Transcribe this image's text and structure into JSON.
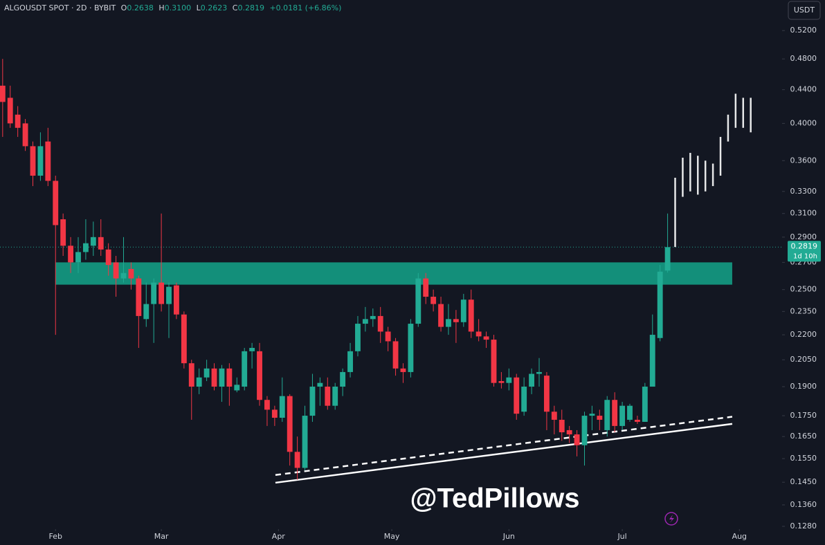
{
  "chart_data": {
    "type": "candlestick",
    "header": {
      "symbol": "ALGOUSDT SPOT · 2D · BYBIT",
      "o_key": "O",
      "o": "0.2638",
      "h_key": "H",
      "h": "0.3100",
      "l_key": "L",
      "l": "0.2623",
      "c_key": "C",
      "c": "0.2819",
      "change": "+0.0181 (+6.86%)"
    },
    "currency": "USDT",
    "watermark": "@TedPillows",
    "log_scale": true,
    "grid": false,
    "up_color": "#22ab94",
    "down_color": "#f23645",
    "x": [
      17,
      19,
      21,
      23,
      25,
      27,
      29,
      31,
      33,
      35,
      37,
      39,
      41,
      43,
      45,
      47,
      49,
      51,
      53,
      55,
      57,
      59,
      61,
      63,
      65,
      67,
      69,
      71,
      73,
      75,
      77,
      79,
      81,
      83,
      85,
      87,
      89,
      91,
      93,
      95,
      97,
      99,
      101,
      103,
      105,
      107,
      109,
      111,
      113,
      115,
      117,
      119,
      121,
      123,
      125,
      127,
      129,
      131,
      133,
      135,
      137,
      139,
      141,
      143,
      145,
      147,
      149,
      151,
      153,
      155,
      157,
      159,
      161,
      163,
      165,
      167,
      169,
      171,
      173,
      175,
      177,
      179,
      181,
      183,
      185,
      187,
      189,
      191,
      193
    ],
    "open": [
      0.445,
      0.43,
      0.41,
      0.4,
      0.375,
      0.345,
      0.38,
      0.34,
      0.305,
      0.283,
      0.27,
      0.278,
      0.283,
      0.29,
      0.28,
      0.27,
      0.258,
      0.265,
      0.258,
      0.23,
      0.24,
      0.255,
      0.24,
      0.253,
      0.233,
      0.203,
      0.19,
      0.195,
      0.2,
      0.19,
      0.2,
      0.188,
      0.19,
      0.21,
      0.21,
      0.183,
      0.178,
      0.174,
      0.185,
      0.158,
      0.151,
      0.175,
      0.19,
      0.19,
      0.18,
      0.19,
      0.198,
      0.21,
      0.227,
      0.23,
      0.232,
      0.222,
      0.216,
      0.2,
      0.198,
      0.227,
      0.258,
      0.245,
      0.24,
      0.225,
      0.23,
      0.228,
      0.243,
      0.222,
      0.219,
      0.217,
      0.193,
      0.192,
      0.195,
      0.177,
      0.19,
      0.197,
      0.196,
      0.177,
      0.173,
      0.168,
      0.166,
      0.161,
      0.175,
      0.175,
      0.168,
      0.183,
      0.17,
      0.173,
      0.173,
      0.172,
      0.19,
      0.218,
      0.2638
    ],
    "high": [
      0.48,
      0.445,
      0.42,
      0.405,
      0.38,
      0.39,
      0.395,
      0.345,
      0.31,
      0.29,
      0.29,
      0.305,
      0.303,
      0.305,
      0.285,
      0.275,
      0.29,
      0.27,
      0.26,
      0.255,
      0.258,
      0.31,
      0.255,
      0.255,
      0.235,
      0.205,
      0.2,
      0.205,
      0.203,
      0.202,
      0.203,
      0.195,
      0.212,
      0.215,
      0.215,
      0.185,
      0.18,
      0.195,
      0.186,
      0.165,
      0.18,
      0.197,
      0.195,
      0.195,
      0.192,
      0.2,
      0.215,
      0.232,
      0.238,
      0.237,
      0.238,
      0.225,
      0.218,
      0.203,
      0.23,
      0.262,
      0.262,
      0.25,
      0.245,
      0.24,
      0.236,
      0.247,
      0.25,
      0.23,
      0.222,
      0.22,
      0.198,
      0.2,
      0.197,
      0.195,
      0.2,
      0.206,
      0.198,
      0.18,
      0.178,
      0.17,
      0.168,
      0.177,
      0.18,
      0.178,
      0.185,
      0.187,
      0.182,
      0.181,
      0.175,
      0.192,
      0.233,
      0.268,
      0.31
    ],
    "low": [
      0.385,
      0.395,
      0.385,
      0.37,
      0.335,
      0.34,
      0.335,
      0.22,
      0.275,
      0.262,
      0.262,
      0.272,
      0.275,
      0.275,
      0.26,
      0.245,
      0.255,
      0.25,
      0.212,
      0.225,
      0.215,
      0.235,
      0.218,
      0.23,
      0.2,
      0.173,
      0.186,
      0.193,
      0.188,
      0.182,
      0.18,
      0.187,
      0.188,
      0.2,
      0.18,
      0.17,
      0.17,
      0.172,
      0.152,
      0.146,
      0.15,
      0.172,
      0.18,
      0.178,
      0.178,
      0.185,
      0.195,
      0.207,
      0.222,
      0.225,
      0.215,
      0.21,
      0.196,
      0.192,
      0.195,
      0.225,
      0.24,
      0.235,
      0.222,
      0.22,
      0.215,
      0.225,
      0.218,
      0.216,
      0.212,
      0.19,
      0.189,
      0.188,
      0.173,
      0.175,
      0.186,
      0.19,
      0.168,
      0.166,
      0.163,
      0.162,
      0.156,
      0.152,
      0.168,
      0.168,
      0.165,
      0.167,
      0.168,
      0.172,
      0.171,
      0.172,
      0.19,
      0.216,
      0.2623
    ],
    "close": [
      0.425,
      0.4,
      0.395,
      0.375,
      0.345,
      0.375,
      0.34,
      0.3,
      0.283,
      0.27,
      0.278,
      0.285,
      0.29,
      0.28,
      0.268,
      0.258,
      0.262,
      0.258,
      0.232,
      0.24,
      0.255,
      0.24,
      0.252,
      0.233,
      0.203,
      0.19,
      0.195,
      0.2,
      0.19,
      0.2,
      0.19,
      0.191,
      0.21,
      0.212,
      0.183,
      0.178,
      0.174,
      0.185,
      0.158,
      0.151,
      0.175,
      0.19,
      0.192,
      0.18,
      0.19,
      0.198,
      0.21,
      0.227,
      0.23,
      0.232,
      0.222,
      0.216,
      0.2,
      0.198,
      0.227,
      0.258,
      0.245,
      0.24,
      0.225,
      0.23,
      0.228,
      0.243,
      0.222,
      0.219,
      0.217,
      0.192,
      0.192,
      0.195,
      0.176,
      0.19,
      0.197,
      0.198,
      0.177,
      0.173,
      0.167,
      0.166,
      0.161,
      0.175,
      0.176,
      0.173,
      0.183,
      0.17,
      0.18,
      0.18,
      0.172,
      0.19,
      0.22,
      0.263,
      0.2819
    ],
    "projection": {
      "color": "#ffffff",
      "x": [
        195,
        197,
        199,
        201,
        203,
        205,
        207,
        209,
        211,
        213,
        215
      ],
      "low": [
        0.282,
        0.325,
        0.33,
        0.327,
        0.33,
        0.335,
        0.345,
        0.38,
        0.395,
        0.395,
        0.39
      ],
      "high": [
        0.343,
        0.363,
        0.368,
        0.365,
        0.36,
        0.357,
        0.385,
        0.41,
        0.435,
        0.43,
        0.43
      ]
    },
    "zone": {
      "color": "#149c84",
      "x": [
        31,
        210.1
      ],
      "y": [
        0.2535,
        0.27
      ]
    },
    "trendlines": [
      {
        "style": "solid",
        "color": "#ffffff",
        "x": [
          89.2,
          210.1
        ],
        "y": [
          0.1448,
          0.171
        ]
      },
      {
        "style": "dashed",
        "color": "#ffffff",
        "x": [
          89.2,
          210.1
        ],
        "y": [
          0.148,
          0.1745
        ]
      }
    ],
    "last_price": {
      "value": 0.2819,
      "countdown": "1d 10h",
      "color": "#22ab94"
    },
    "xlim": [
      16.3,
      223.3
    ],
    "ylim": [
      0.127,
      0.567
    ],
    "xticks": [
      {
        "value": 31,
        "label": "Feb"
      },
      {
        "value": 59,
        "label": "Mar"
      },
      {
        "value": 90,
        "label": "Apr"
      },
      {
        "value": 120,
        "label": "May"
      },
      {
        "value": 151,
        "label": "Jun"
      },
      {
        "value": 181,
        "label": "Jul"
      },
      {
        "value": 212,
        "label": "Aug"
      }
    ],
    "yticks": [
      {
        "value": 0.52,
        "label": "0.5200"
      },
      {
        "value": 0.48,
        "label": "0.4800"
      },
      {
        "value": 0.44,
        "label": "0.4400"
      },
      {
        "value": 0.4,
        "label": "0.4000"
      },
      {
        "value": 0.36,
        "label": "0.3600"
      },
      {
        "value": 0.33,
        "label": "0.3300"
      },
      {
        "value": 0.31,
        "label": "0.3100"
      },
      {
        "value": 0.29,
        "label": "0.2900"
      },
      {
        "value": 0.27,
        "label": "0.2700"
      },
      {
        "value": 0.25,
        "label": "0.2500"
      },
      {
        "value": 0.235,
        "label": "0.2350"
      },
      {
        "value": 0.22,
        "label": "0.2200"
      },
      {
        "value": 0.205,
        "label": "0.2050"
      },
      {
        "value": 0.19,
        "label": "0.1900"
      },
      {
        "value": 0.175,
        "label": "0.1750"
      },
      {
        "value": 0.165,
        "label": "0.1650"
      },
      {
        "value": 0.155,
        "label": "0.1550"
      },
      {
        "value": 0.145,
        "label": "0.1450"
      },
      {
        "value": 0.136,
        "label": "0.1360"
      },
      {
        "value": 0.128,
        "label": "0.1280"
      }
    ]
  }
}
